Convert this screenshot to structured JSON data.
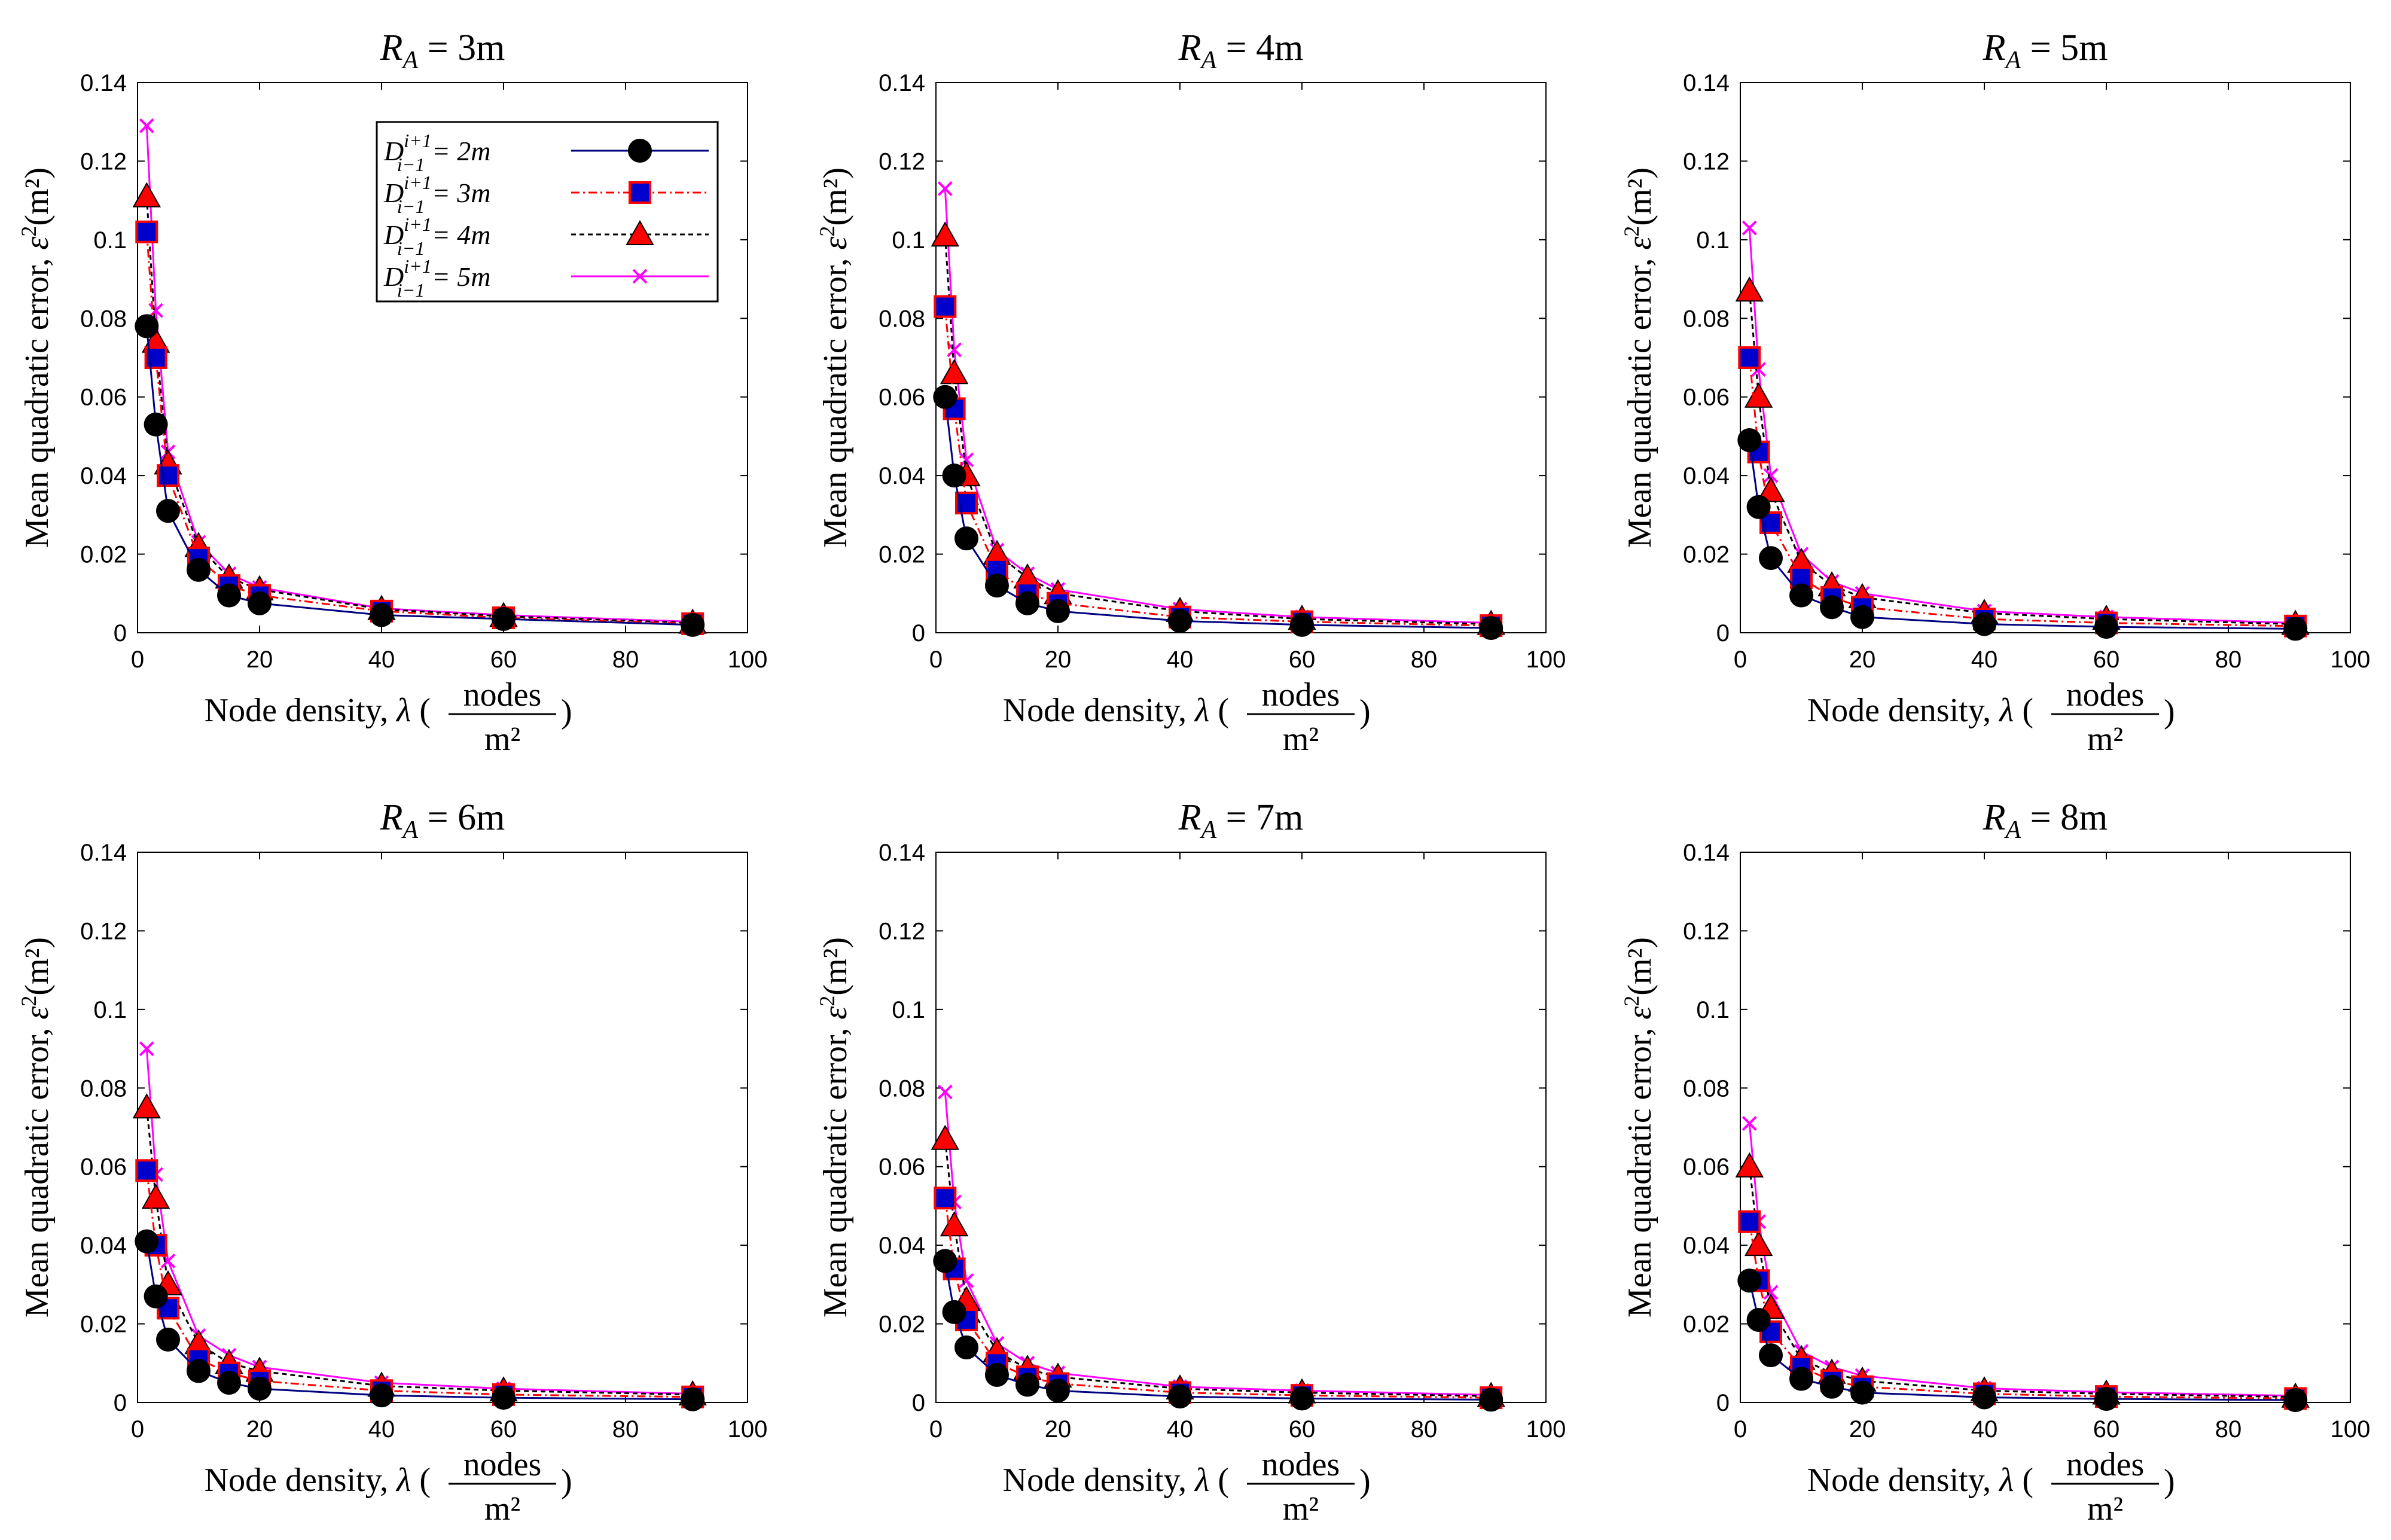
{
  "chart_data": [
    {
      "type": "line",
      "title": "R_A = 3m",
      "title_var": "R",
      "title_sub": "A",
      "title_value": " = 3m",
      "xlabel": "Node density, λ (nodes/m²)",
      "ylabel": "Mean quadratic error, ε²(m²)",
      "xlim": [
        0,
        100
      ],
      "ylim": [
        0,
        0.14
      ],
      "legend_position": "top-right",
      "x": [
        1.5,
        3,
        5,
        10,
        15,
        20,
        40,
        60,
        91
      ],
      "series": [
        {
          "name": "D_{i-1}^{i+1} = 2m",
          "values": [
            0.078,
            0.053,
            0.031,
            0.016,
            0.0095,
            0.0075,
            0.0045,
            0.0035,
            0.002
          ]
        },
        {
          "name": "D_{i-1}^{i+1} = 3m",
          "values": [
            0.102,
            0.07,
            0.04,
            0.019,
            0.012,
            0.0095,
            0.0055,
            0.0038,
            0.0023
          ]
        },
        {
          "name": "D_{i-1}^{i+1} = 4m",
          "values": [
            0.111,
            0.074,
            0.043,
            0.022,
            0.014,
            0.011,
            0.006,
            0.0042,
            0.0025
          ]
        },
        {
          "name": "D_{i-1}^{i+1} = 5m",
          "values": [
            0.129,
            0.082,
            0.046,
            0.023,
            0.015,
            0.0115,
            0.0062,
            0.0045,
            0.0028
          ]
        }
      ]
    },
    {
      "type": "line",
      "title": "R_A = 4m",
      "title_var": "R",
      "title_sub": "A",
      "title_value": " = 4m",
      "xlabel": "Node density, λ (nodes/m²)",
      "ylabel": "Mean quadratic error, ε²(m²)",
      "xlim": [
        0,
        100
      ],
      "ylim": [
        0,
        0.14
      ],
      "x": [
        1.5,
        3,
        5,
        10,
        15,
        20,
        40,
        60,
        91
      ],
      "series": [
        {
          "name": "D_{i-1}^{i+1} = 2m",
          "values": [
            0.06,
            0.04,
            0.024,
            0.012,
            0.0075,
            0.0055,
            0.003,
            0.002,
            0.0012
          ]
        },
        {
          "name": "D_{i-1}^{i+1} = 3m",
          "values": [
            0.083,
            0.057,
            0.033,
            0.016,
            0.01,
            0.0075,
            0.004,
            0.0028,
            0.0018
          ]
        },
        {
          "name": "D_{i-1}^{i+1} = 4m",
          "values": [
            0.101,
            0.066,
            0.04,
            0.02,
            0.014,
            0.01,
            0.0055,
            0.0035,
            0.0022
          ]
        },
        {
          "name": "D_{i-1}^{i+1} = 5m",
          "values": [
            0.113,
            0.072,
            0.044,
            0.021,
            0.015,
            0.011,
            0.006,
            0.004,
            0.0025
          ]
        }
      ]
    },
    {
      "type": "line",
      "title": "R_A = 5m",
      "title_var": "R",
      "title_sub": "A",
      "title_value": " = 5m",
      "xlabel": "Node density, λ (nodes/m²)",
      "ylabel": "Mean quadratic error, ε²(m²)",
      "xlim": [
        0,
        100
      ],
      "ylim": [
        0,
        0.14
      ],
      "x": [
        1.5,
        3,
        5,
        10,
        15,
        20,
        40,
        60,
        91
      ],
      "series": [
        {
          "name": "D_{i-1}^{i+1} = 2m",
          "values": [
            0.049,
            0.032,
            0.019,
            0.0095,
            0.0065,
            0.004,
            0.0022,
            0.0015,
            0.001
          ]
        },
        {
          "name": "D_{i-1}^{i+1} = 3m",
          "values": [
            0.07,
            0.046,
            0.028,
            0.014,
            0.009,
            0.0065,
            0.0035,
            0.0025,
            0.0017
          ]
        },
        {
          "name": "D_{i-1}^{i+1} = 4m",
          "values": [
            0.087,
            0.06,
            0.036,
            0.018,
            0.012,
            0.009,
            0.005,
            0.0035,
            0.0022
          ]
        },
        {
          "name": "D_{i-1}^{i+1} = 5m",
          "values": [
            0.103,
            0.067,
            0.04,
            0.02,
            0.013,
            0.01,
            0.0055,
            0.004,
            0.0025
          ]
        }
      ]
    },
    {
      "type": "line",
      "title": "R_A = 6m",
      "title_var": "R",
      "title_sub": "A",
      "title_value": " = 6m",
      "xlabel": "Node density, λ (nodes/m²)",
      "ylabel": "Mean quadratic error, ε²(m²)",
      "xlim": [
        0,
        100
      ],
      "ylim": [
        0,
        0.14
      ],
      "x": [
        1.5,
        3,
        5,
        10,
        15,
        20,
        40,
        60,
        91
      ],
      "series": [
        {
          "name": "D_{i-1}^{i+1} = 2m",
          "values": [
            0.041,
            0.027,
            0.016,
            0.008,
            0.005,
            0.0035,
            0.0018,
            0.0012,
            0.0008
          ]
        },
        {
          "name": "D_{i-1}^{i+1} = 3m",
          "values": [
            0.059,
            0.04,
            0.024,
            0.011,
            0.0075,
            0.0055,
            0.003,
            0.002,
            0.0014
          ]
        },
        {
          "name": "D_{i-1}^{i+1} = 4m",
          "values": [
            0.075,
            0.052,
            0.03,
            0.015,
            0.01,
            0.008,
            0.0042,
            0.003,
            0.002
          ]
        },
        {
          "name": "D_{i-1}^{i+1} = 5m",
          "values": [
            0.09,
            0.058,
            0.036,
            0.017,
            0.012,
            0.009,
            0.005,
            0.0035,
            0.0022
          ]
        }
      ]
    },
    {
      "type": "line",
      "title": "R_A = 7m",
      "title_var": "R",
      "title_sub": "A",
      "title_value": " = 7m",
      "xlabel": "Node density, λ (nodes/m²)",
      "ylabel": "Mean quadratic error, ε²(m²)",
      "xlim": [
        0,
        100
      ],
      "ylim": [
        0,
        0.14
      ],
      "x": [
        1.5,
        3,
        5,
        10,
        15,
        20,
        40,
        60,
        91
      ],
      "series": [
        {
          "name": "D_{i-1}^{i+1} = 2m",
          "values": [
            0.036,
            0.023,
            0.014,
            0.007,
            0.0045,
            0.003,
            0.0015,
            0.001,
            0.0007
          ]
        },
        {
          "name": "D_{i-1}^{i+1} = 3m",
          "values": [
            0.052,
            0.034,
            0.021,
            0.01,
            0.0065,
            0.0048,
            0.0025,
            0.0018,
            0.0012
          ]
        },
        {
          "name": "D_{i-1}^{i+1} = 4m",
          "values": [
            0.067,
            0.045,
            0.026,
            0.013,
            0.0085,
            0.0065,
            0.0035,
            0.0025,
            0.0016
          ]
        },
        {
          "name": "D_{i-1}^{i+1} = 5m",
          "values": [
            0.079,
            0.051,
            0.031,
            0.015,
            0.01,
            0.0075,
            0.004,
            0.003,
            0.0019
          ]
        }
      ]
    },
    {
      "type": "line",
      "title": "R_A = 8m",
      "title_var": "R",
      "title_sub": "A",
      "title_value": " = 8m",
      "xlabel": "Node density, λ (nodes/m²)",
      "ylabel": "Mean quadratic error, ε²(m²)",
      "xlim": [
        0,
        100
      ],
      "ylim": [
        0,
        0.14
      ],
      "x": [
        1.5,
        3,
        5,
        10,
        15,
        20,
        40,
        60,
        91
      ],
      "series": [
        {
          "name": "D_{i-1}^{i+1} = 2m",
          "values": [
            0.031,
            0.021,
            0.012,
            0.006,
            0.004,
            0.0025,
            0.0013,
            0.0009,
            0.0006
          ]
        },
        {
          "name": "D_{i-1}^{i+1} = 3m",
          "values": [
            0.046,
            0.031,
            0.018,
            0.009,
            0.0055,
            0.004,
            0.0022,
            0.0015,
            0.001
          ]
        },
        {
          "name": "D_{i-1}^{i+1} = 4m",
          "values": [
            0.06,
            0.04,
            0.024,
            0.011,
            0.0075,
            0.0055,
            0.003,
            0.0022,
            0.0014
          ]
        },
        {
          "name": "D_{i-1}^{i+1} = 5m",
          "values": [
            0.071,
            0.046,
            0.028,
            0.013,
            0.009,
            0.0068,
            0.0036,
            0.0026,
            0.0017
          ]
        }
      ]
    }
  ],
  "axis_text": {
    "xlabel_prefix": "Node density, ",
    "xlabel_var": "λ",
    "xlabel_num": "nodes",
    "xlabel_den": "m²",
    "ylabel_prefix": "Mean quadratic error, ",
    "ylabel_var": "ε",
    "ylabel_suffix": "(m²)",
    "x_ticks": [
      "0",
      "20",
      "40",
      "60",
      "80",
      "100"
    ],
    "y_ticks": [
      "0",
      "0.02",
      "0.04",
      "0.06",
      "0.08",
      "0.1",
      "0.12",
      "0.14"
    ]
  },
  "legend": [
    {
      "var": "D",
      "sub": "i−1",
      "sup": "i+1",
      "value": " = 2m"
    },
    {
      "var": "D",
      "sub": "i−1",
      "sup": "i+1",
      "value": " = 3m"
    },
    {
      "var": "D",
      "sub": "i−1",
      "sup": "i+1",
      "value": " = 4m"
    },
    {
      "var": "D",
      "sub": "i−1",
      "sup": "i+1",
      "value": " = 5m"
    }
  ],
  "styles": {
    "series_colors": [
      "#000080",
      "#ff0000",
      "#000000",
      "#ff00ff"
    ],
    "marker_fills": [
      "#000000",
      "#0000cc",
      "#ff0000",
      "#ff00ff"
    ],
    "marker_strokes": [
      "#000000",
      "#ff0000",
      "#000000",
      "#ff00ff"
    ],
    "markers": [
      "circle",
      "square",
      "triangle",
      "x"
    ],
    "dashes": [
      "",
      "14,6,3,6",
      "8,6",
      ""
    ]
  }
}
